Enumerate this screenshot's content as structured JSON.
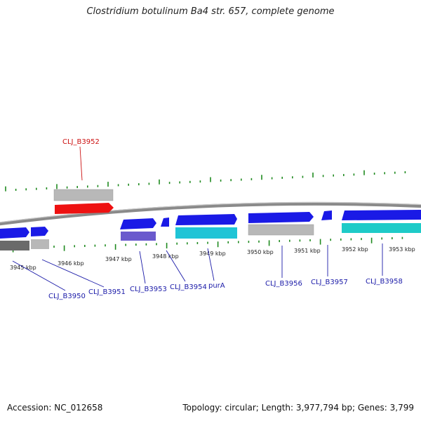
{
  "title": "Clostridium botulinum Ba4 str. 657, complete genome",
  "footer": {
    "accession": "Accession: NC_012658",
    "summary": "Topology: circular; Length: 3,977,794 bp; Genes: 3,799"
  },
  "colors": {
    "backbone": "#8a8a8a",
    "tick": "#1f8a1f",
    "forward_gene": "#1a1ae6",
    "highlight_gene": "#ee1111",
    "gray_feature": "#b8b8b8",
    "dark_gray_feature": "#6a6a6a",
    "cyan_feature": "#1fc4d6",
    "teal_feature": "#1ecbc8",
    "purple_feature": "#6a5acd",
    "label_blue": "#1a1aa8",
    "label_red": "#cc1111"
  },
  "scale_labels": [
    "3945 kbp",
    "3946 kbp",
    "3947 kbp",
    "3948 kbp",
    "3949 kbp",
    "3950 kbp",
    "3951 kbp",
    "3952 kbp",
    "3953 kbp"
  ],
  "gene_labels": [
    {
      "name": "CLJ_B3952",
      "kind": "highlight"
    },
    {
      "name": "CLJ_B3950",
      "kind": "normal"
    },
    {
      "name": "CLJ_B3951",
      "kind": "normal"
    },
    {
      "name": "CLJ_B3953",
      "kind": "normal"
    },
    {
      "name": "CLJ_B3954",
      "kind": "normal"
    },
    {
      "name": "purA",
      "kind": "normal"
    },
    {
      "name": "CLJ_B3956",
      "kind": "normal"
    },
    {
      "name": "CLJ_B3957",
      "kind": "normal"
    },
    {
      "name": "CLJ_B3958",
      "kind": "normal"
    }
  ]
}
